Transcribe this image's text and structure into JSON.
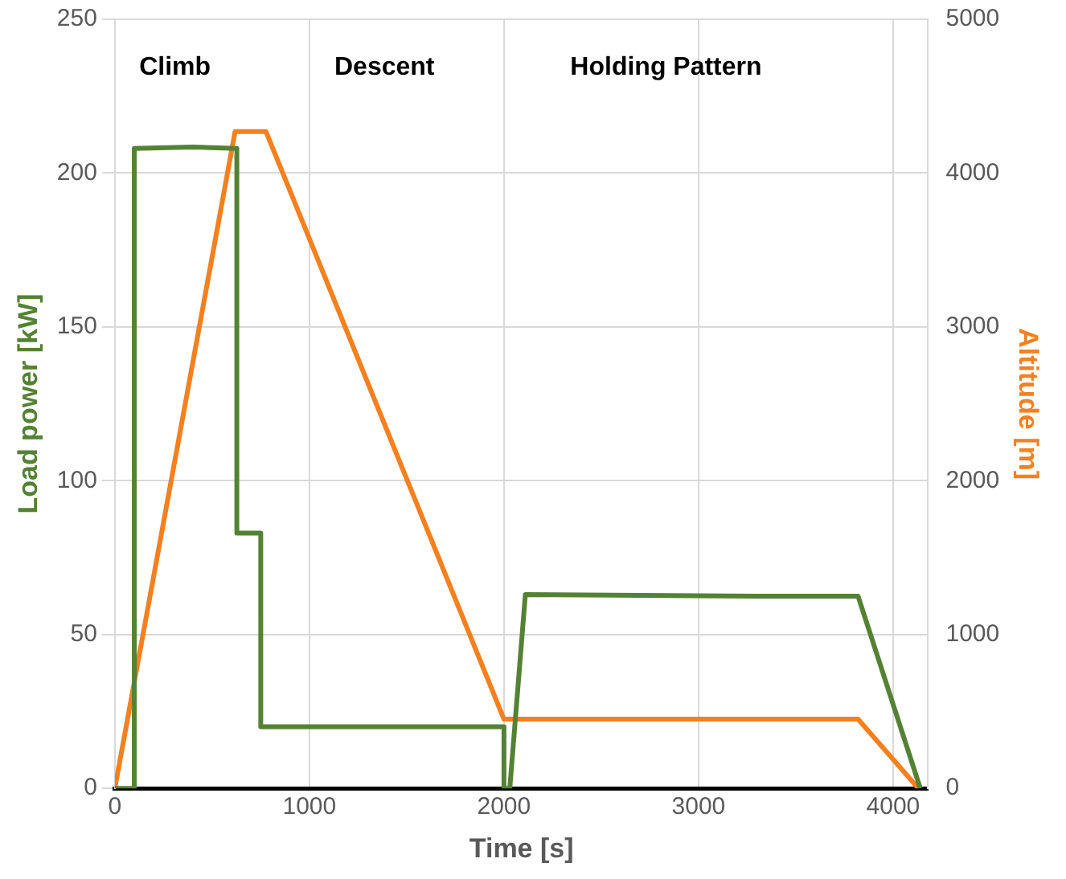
{
  "chart_data": {
    "type": "line",
    "xlabel": "Time [s]",
    "ylabel": "Load power [kW]",
    "y2label": "Altitude [m]",
    "xlim": [
      0,
      4180
    ],
    "xticks": [
      0,
      1000,
      2000,
      3000,
      4000
    ],
    "ylim": [
      0,
      250
    ],
    "yticks": [
      0,
      50,
      100,
      150,
      200,
      250
    ],
    "y2lim": [
      0,
      5000
    ],
    "y2ticks": [
      0,
      1000,
      2000,
      3000,
      4000,
      5000
    ],
    "grid": true,
    "legend": false,
    "marker": "none",
    "line_style": "solid",
    "series": [
      {
        "color": "#548235",
        "x": [
          0,
          100,
          100,
          400,
          627,
          627,
          750,
          750,
          2000,
          2000,
          2030,
          2110,
          3300,
          3820,
          4140
        ],
        "values": [
          0,
          0,
          208,
          208.5,
          208,
          83,
          83,
          20,
          20,
          0,
          0,
          63,
          62.5,
          62.5,
          0
        ]
      },
      {
        "axis": "y2",
        "color": "#f4801f",
        "x": [
          0,
          618,
          777,
          2000,
          3820,
          4130
        ],
        "values": [
          0,
          4270,
          4270,
          450,
          450,
          0
        ]
      }
    ],
    "annotations": [
      "Climb",
      "Descent",
      "Holding Pattern"
    ]
  }
}
